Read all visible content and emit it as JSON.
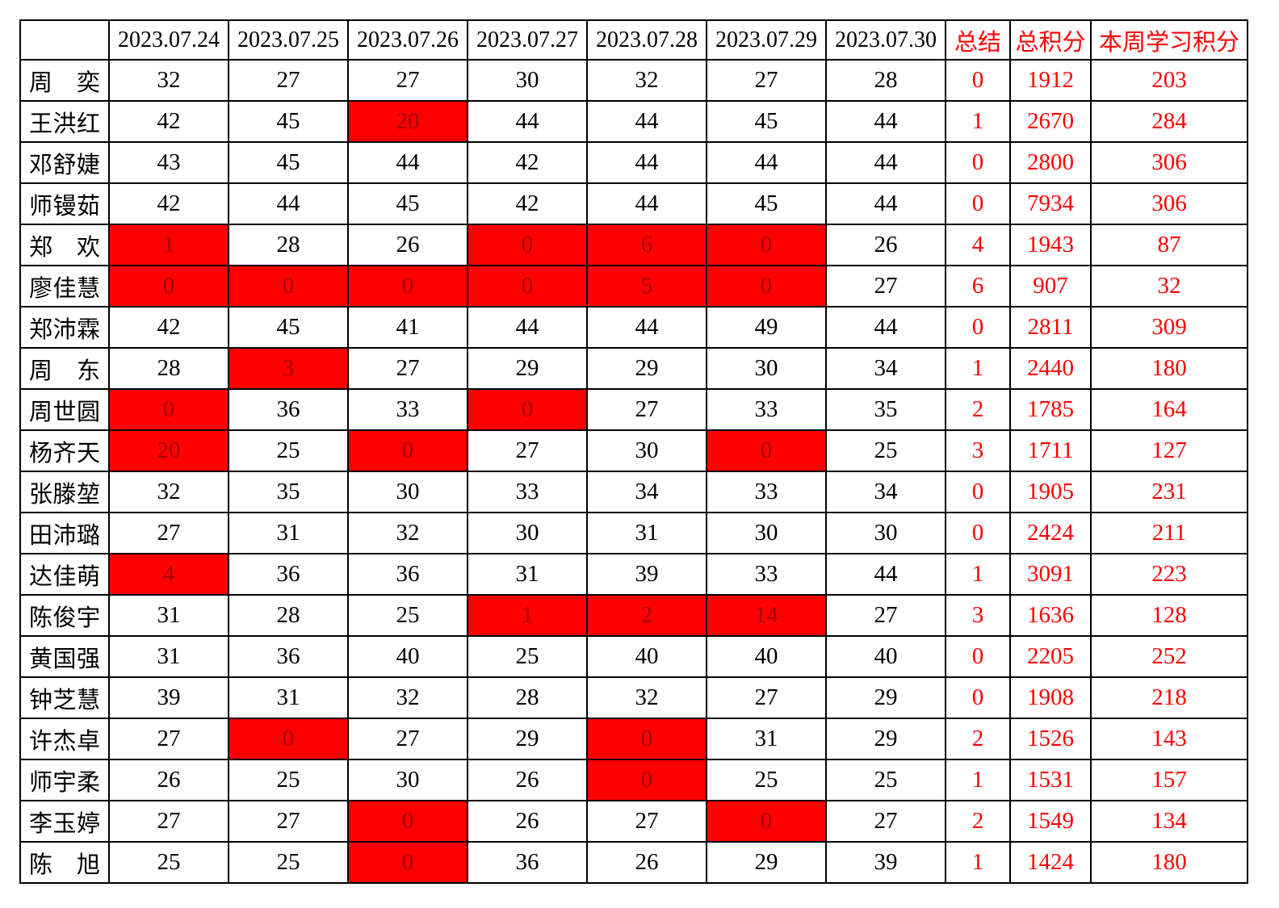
{
  "table": {
    "corner_label": "",
    "date_headers": [
      "2023.07.24",
      "2023.07.25",
      "2023.07.26",
      "2023.07.27",
      "2023.07.28",
      "2023.07.29",
      "2023.07.30"
    ],
    "summary_header": "总结",
    "total_header": "总积分",
    "week_header": "本周学习积分",
    "rows": [
      {
        "name": "周　奕",
        "daily": [
          32,
          27,
          27,
          30,
          32,
          27,
          28
        ],
        "red": [
          0,
          0,
          0,
          0,
          0,
          0,
          0
        ],
        "summary": 0,
        "total": 1912,
        "week": 203
      },
      {
        "name": "王洪红",
        "daily": [
          42,
          45,
          20,
          44,
          44,
          45,
          44
        ],
        "red": [
          0,
          0,
          1,
          0,
          0,
          0,
          0
        ],
        "summary": 1,
        "total": 2670,
        "week": 284
      },
      {
        "name": "邓舒婕",
        "daily": [
          43,
          45,
          44,
          42,
          44,
          44,
          44
        ],
        "red": [
          0,
          0,
          0,
          0,
          0,
          0,
          0
        ],
        "summary": 0,
        "total": 2800,
        "week": 306
      },
      {
        "name": "师镘茹",
        "daily": [
          42,
          44,
          45,
          42,
          44,
          45,
          44
        ],
        "red": [
          0,
          0,
          0,
          0,
          0,
          0,
          0
        ],
        "summary": 0,
        "total": 7934,
        "week": 306
      },
      {
        "name": "郑　欢",
        "daily": [
          1,
          28,
          26,
          0,
          6,
          0,
          26
        ],
        "red": [
          1,
          0,
          0,
          1,
          1,
          1,
          0
        ],
        "summary": 4,
        "total": 1943,
        "week": 87
      },
      {
        "name": "廖佳慧",
        "daily": [
          0,
          0,
          0,
          0,
          5,
          0,
          27
        ],
        "red": [
          1,
          1,
          1,
          1,
          1,
          1,
          0
        ],
        "summary": 6,
        "total": 907,
        "week": 32
      },
      {
        "name": "郑沛霖",
        "daily": [
          42,
          45,
          41,
          44,
          44,
          49,
          44
        ],
        "red": [
          0,
          0,
          0,
          0,
          0,
          0,
          0
        ],
        "summary": 0,
        "total": 2811,
        "week": 309
      },
      {
        "name": "周　东",
        "daily": [
          28,
          3,
          27,
          29,
          29,
          30,
          34
        ],
        "red": [
          0,
          1,
          0,
          0,
          0,
          0,
          0
        ],
        "summary": 1,
        "total": 2440,
        "week": 180
      },
      {
        "name": "周世圆",
        "daily": [
          0,
          36,
          33,
          0,
          27,
          33,
          35
        ],
        "red": [
          1,
          0,
          0,
          1,
          0,
          0,
          0
        ],
        "summary": 2,
        "total": 1785,
        "week": 164
      },
      {
        "name": "杨齐天",
        "daily": [
          20,
          25,
          0,
          27,
          30,
          0,
          25
        ],
        "red": [
          1,
          0,
          1,
          0,
          0,
          1,
          0
        ],
        "summary": 3,
        "total": 1711,
        "week": 127
      },
      {
        "name": "张滕堃",
        "daily": [
          32,
          35,
          30,
          33,
          34,
          33,
          34
        ],
        "red": [
          0,
          0,
          0,
          0,
          0,
          0,
          0
        ],
        "summary": 0,
        "total": 1905,
        "week": 231
      },
      {
        "name": "田沛璐",
        "daily": [
          27,
          31,
          32,
          30,
          31,
          30,
          30
        ],
        "red": [
          0,
          0,
          0,
          0,
          0,
          0,
          0
        ],
        "summary": 0,
        "total": 2424,
        "week": 211
      },
      {
        "name": "达佳萌",
        "daily": [
          4,
          36,
          36,
          31,
          39,
          33,
          44
        ],
        "red": [
          1,
          0,
          0,
          0,
          0,
          0,
          0
        ],
        "summary": 1,
        "total": 3091,
        "week": 223
      },
      {
        "name": "陈俊宇",
        "daily": [
          31,
          28,
          25,
          1,
          2,
          14,
          27
        ],
        "red": [
          0,
          0,
          0,
          1,
          1,
          1,
          0
        ],
        "summary": 3,
        "total": 1636,
        "week": 128
      },
      {
        "name": "黄国强",
        "daily": [
          31,
          36,
          40,
          25,
          40,
          40,
          40
        ],
        "red": [
          0,
          0,
          0,
          0,
          0,
          0,
          0
        ],
        "summary": 0,
        "total": 2205,
        "week": 252
      },
      {
        "name": "钟芝慧",
        "daily": [
          39,
          31,
          32,
          28,
          32,
          27,
          29
        ],
        "red": [
          0,
          0,
          0,
          0,
          0,
          0,
          0
        ],
        "summary": 0,
        "total": 1908,
        "week": 218
      },
      {
        "name": "许杰卓",
        "daily": [
          27,
          0,
          27,
          29,
          0,
          31,
          29
        ],
        "red": [
          0,
          1,
          0,
          0,
          1,
          0,
          0
        ],
        "summary": 2,
        "total": 1526,
        "week": 143
      },
      {
        "name": "师宇柔",
        "daily": [
          26,
          25,
          30,
          26,
          0,
          25,
          25
        ],
        "red": [
          0,
          0,
          0,
          0,
          1,
          0,
          0
        ],
        "summary": 1,
        "total": 1531,
        "week": 157
      },
      {
        "name": "李玉婷",
        "daily": [
          27,
          27,
          0,
          26,
          27,
          0,
          27
        ],
        "red": [
          0,
          0,
          1,
          0,
          0,
          1,
          0
        ],
        "summary": 2,
        "total": 1549,
        "week": 134
      },
      {
        "name": "陈　旭",
        "daily": [
          25,
          25,
          0,
          36,
          26,
          29,
          39
        ],
        "red": [
          0,
          0,
          1,
          0,
          0,
          0,
          0
        ],
        "summary": 1,
        "total": 1424,
        "week": 180
      }
    ]
  },
  "colors": {
    "highlight_bg": "#ff0000",
    "highlight_text": "#a00000",
    "accent_text": "#ff0000",
    "body_text": "#000000",
    "border": "#000000"
  },
  "layout_hints": {
    "name_col_width": 110,
    "date_col_width": 148,
    "summary_col_width": 80,
    "total_col_width": 100,
    "week_col_width": 194
  }
}
